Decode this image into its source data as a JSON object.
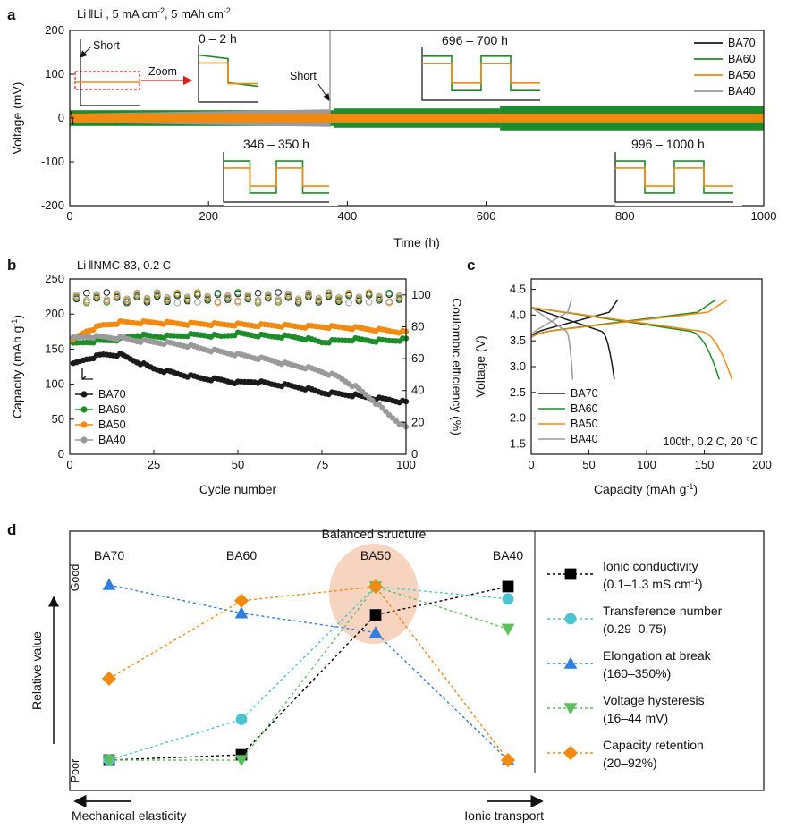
{
  "colors": {
    "BA70": "#1a1a1a",
    "BA60": "#1e8c2a",
    "BA50": "#f28a10",
    "BA40": "#9a9a9a",
    "ion": "#000000",
    "tn": "#4cc4cf",
    "elong": "#2f7fe0",
    "hyst": "#5fbf5f",
    "cap": "#f28a10",
    "bubble": "#f5c9b0",
    "zoom": "#e02020"
  },
  "panel_labels": {
    "a": "a",
    "b": "b",
    "c": "c",
    "d": "d"
  },
  "panel_a": {
    "header_pre": "Li",
    "header_post": "Li , 5 mA cm",
    "header_mid": ", 5 mAh cm",
    "sup": "-2",
    "xlabel": "Time (h)",
    "ylabel": "Voltage (mV)",
    "xticks": [
      0,
      200,
      400,
      600,
      800,
      1000
    ],
    "yticks": [
      200,
      100,
      0,
      -100,
      -200
    ],
    "xlim": [
      0,
      1000
    ],
    "ylim": [
      -200,
      200
    ],
    "insets": [
      {
        "label": "0 – 2 h"
      },
      {
        "label": "346 – 350 h"
      },
      {
        "label": "696 – 700 h"
      },
      {
        "label": "996 – 1000 h"
      }
    ],
    "short_label": "Short",
    "short2_label": "Short",
    "zoom_label": "Zoom",
    "chart_data": {
      "type": "line",
      "x_units": "h",
      "y_units": "mV",
      "series": [
        {
          "name": "BA70",
          "short_at_h": 5,
          "amplitude_mV": [
            15,
            15
          ]
        },
        {
          "name": "BA60",
          "x_range": [
            0,
            1000
          ],
          "amplitude_mV": [
            18,
            28
          ]
        },
        {
          "name": "BA50",
          "x_range": [
            0,
            1000
          ],
          "amplitude_mV": [
            10,
            10
          ]
        },
        {
          "name": "BA40",
          "short_at_h": 375,
          "amplitude_mV": [
            10,
            20
          ]
        }
      ]
    },
    "legend": [
      "BA70",
      "BA60",
      "BA50",
      "BA40"
    ]
  },
  "panel_b": {
    "header_pre": "Li",
    "header_post": "NMC-83, 0.2 C",
    "xlabel": "Cycle number",
    "ylabel_left": "Capacity (mAh g",
    "ylabel_left_sup": "-1",
    "ylabel_left_end": ")",
    "ylabel_right": "Coulombic efficiency (%)",
    "xticks": [
      0,
      25,
      50,
      75,
      100
    ],
    "yticks_left": [
      0,
      50,
      100,
      150,
      200,
      250
    ],
    "yticks_right": [
      0,
      20,
      40,
      60,
      80,
      100
    ],
    "xlim": [
      0,
      100
    ],
    "ylim_left": [
      0,
      250
    ],
    "ylim_right": [
      0,
      110
    ],
    "legend": [
      "BA70",
      "BA60",
      "BA50",
      "BA40"
    ],
    "chart_data": {
      "type": "scatter",
      "x": [
        1,
        5,
        10,
        15,
        20,
        25,
        30,
        35,
        40,
        45,
        50,
        55,
        60,
        65,
        70,
        75,
        80,
        85,
        90,
        95,
        100
      ],
      "series": [
        {
          "name": "BA70",
          "capacity": [
            128,
            136,
            142,
            142,
            132,
            122,
            117,
            112,
            108,
            106,
            102,
            104,
            100,
            98,
            94,
            88,
            86,
            84,
            80,
            78,
            74
          ]
        },
        {
          "name": "BA60",
          "capacity": [
            157,
            160,
            162,
            164,
            170,
            168,
            168,
            170,
            170,
            168,
            172,
            170,
            168,
            168,
            165,
            160,
            162,
            164,
            162,
            162,
            164
          ]
        },
        {
          "name": "BA50",
          "capacity": [
            162,
            176,
            184,
            188,
            188,
            188,
            187,
            186,
            186,
            185,
            185,
            184,
            184,
            183,
            182,
            182,
            181,
            180,
            178,
            176,
            174
          ]
        },
        {
          "name": "BA40",
          "capacity": [
            165,
            168,
            167,
            166,
            162,
            160,
            158,
            155,
            150,
            146,
            142,
            138,
            134,
            128,
            124,
            118,
            110,
            96,
            78,
            56,
            38
          ]
        }
      ],
      "ce_range_pct": [
        95,
        102
      ]
    }
  },
  "panel_c": {
    "xlabel": "Capacity (mAh g",
    "xlabel_sup": "-1",
    "xlabel_end": ")",
    "ylabel": "Voltage (V)",
    "xticks": [
      0,
      50,
      100,
      150,
      200
    ],
    "yticks": [
      1.5,
      2.0,
      2.5,
      3.0,
      3.5,
      4.0,
      4.5
    ],
    "xlim": [
      0,
      200
    ],
    "ylim": [
      1.3,
      4.7
    ],
    "legend": [
      "BA70",
      "BA60",
      "BA50",
      "BA40"
    ],
    "note": "100th, 0.2 C, 20 °C",
    "chart_data": {
      "type": "line",
      "series": [
        {
          "name": "BA70",
          "charge_max_capacity": 75,
          "discharge_max_capacity": 72
        },
        {
          "name": "BA60",
          "charge_max_capacity": 160,
          "discharge_max_capacity": 163
        },
        {
          "name": "BA50",
          "charge_max_capacity": 170,
          "discharge_max_capacity": 174
        },
        {
          "name": "BA40",
          "charge_max_capacity": 35,
          "discharge_max_capacity": 36
        }
      ]
    }
  },
  "panel_d": {
    "categories": [
      "BA70",
      "BA60",
      "BA50",
      "BA40"
    ],
    "title": "Balanced structure",
    "ylabel": "Relative value",
    "good": "Good",
    "poor": "Poor",
    "left_arrow": "Mechanical elasticity",
    "right_arrow": "Ionic transport",
    "legend": [
      {
        "key": "ion",
        "l1": "Ionic conductivity",
        "l2": "(0.1–1.3 mS cm",
        "l2_sup": "-1",
        "l2_end": ")"
      },
      {
        "key": "tn",
        "l1": "Transference number",
        "l2": "(0.29–0.75)"
      },
      {
        "key": "elong",
        "l1": "Elongation at break",
        "l2": "(160–350%)"
      },
      {
        "key": "hyst",
        "l1": "Voltage hysteresis",
        "l2": "(16–44 mV)"
      },
      {
        "key": "cap",
        "l1": "Capacity retention",
        "l2": "(20–92%)"
      }
    ],
    "chart_data": {
      "type": "line",
      "categories": [
        "BA70",
        "BA60",
        "BA50",
        "BA40"
      ],
      "series": [
        {
          "name": "Ionic conductivity",
          "key": "ion",
          "marker": "square",
          "values": [
            0.0,
            0.03,
            0.82,
            0.98
          ]
        },
        {
          "name": "Transference number",
          "key": "tn",
          "marker": "circle",
          "values": [
            0.0,
            0.23,
            0.98,
            0.91
          ]
        },
        {
          "name": "Elongation at break",
          "key": "elong",
          "marker": "triangle-up",
          "values": [
            0.99,
            0.83,
            0.72,
            0.0
          ]
        },
        {
          "name": "Voltage hysteresis",
          "key": "hyst",
          "marker": "triangle-down",
          "values": [
            0.0,
            0.0,
            0.98,
            0.74
          ]
        },
        {
          "name": "Capacity retention",
          "key": "cap",
          "marker": "diamond",
          "values": [
            0.46,
            0.9,
            0.98,
            0.0
          ]
        }
      ]
    }
  }
}
